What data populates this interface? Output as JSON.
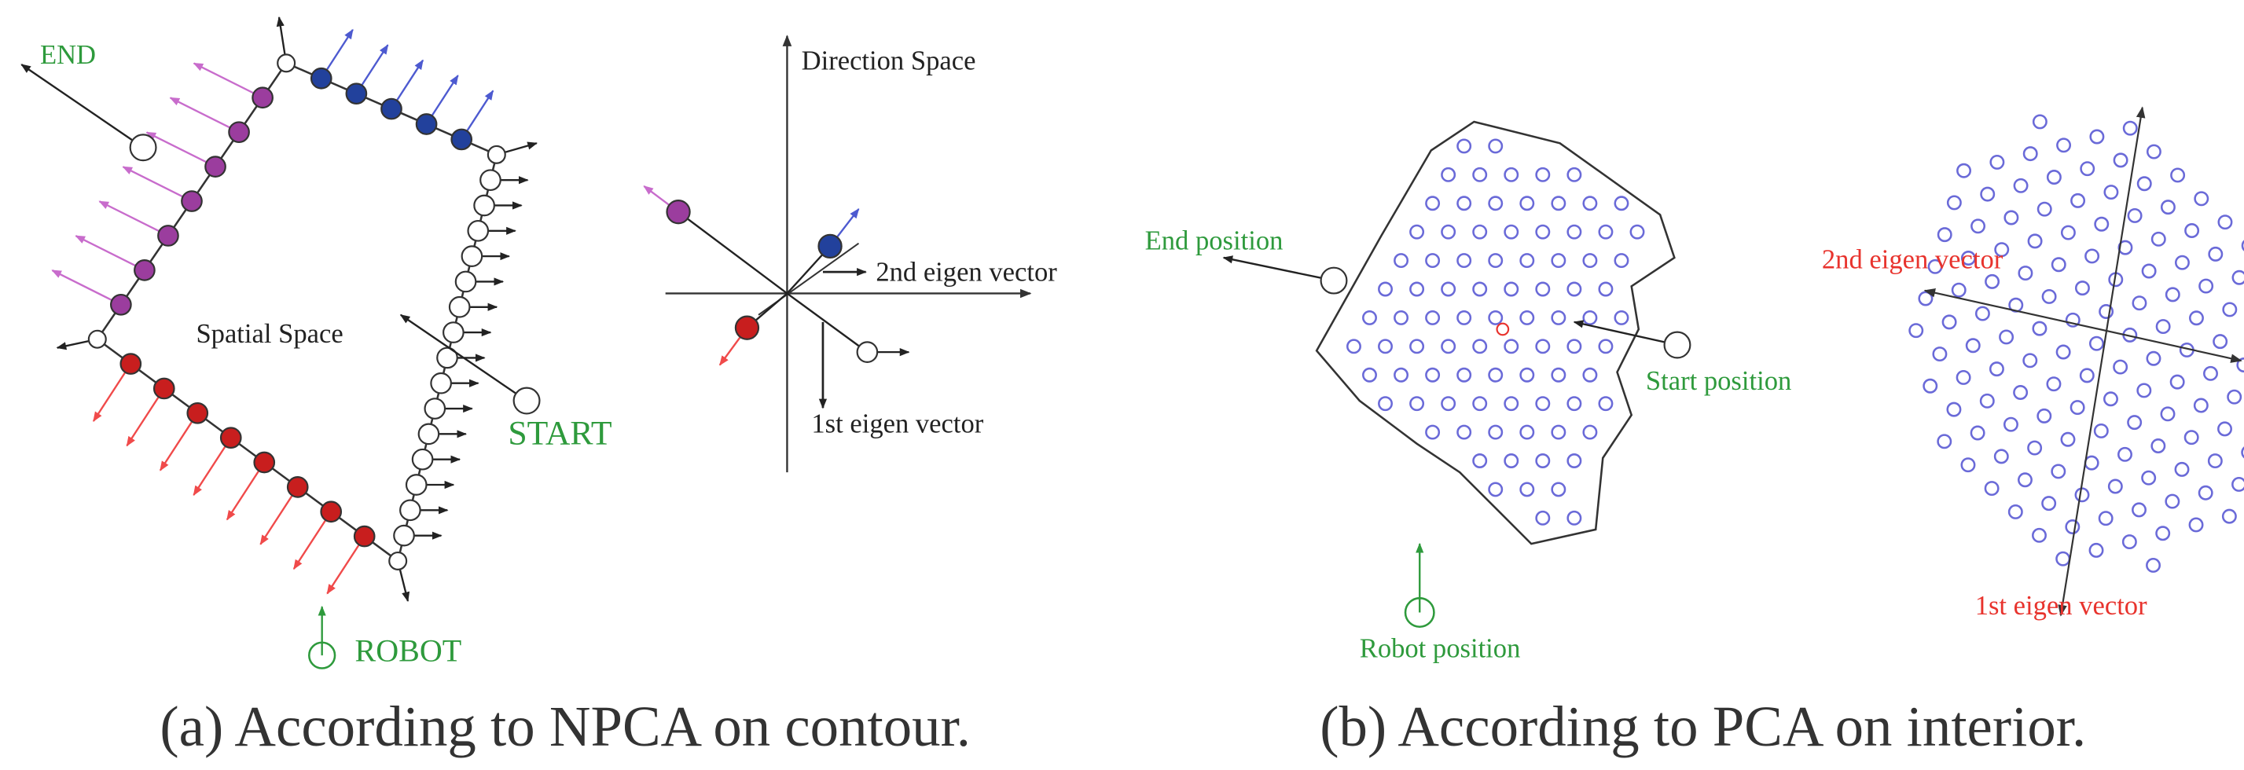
{
  "panel_a": {
    "spatial": {
      "end_label": "END",
      "spatial_label": "Spatial Space",
      "start_label": "START",
      "robot_label": "ROBOT"
    },
    "direction": {
      "title": "Direction Space",
      "eigen2_label": "2nd eigen vector",
      "eigen1_label": "1st eigen vector"
    },
    "caption": "(a) According to NPCA on contour."
  },
  "panel_b": {
    "interior": {
      "end_label": "End position",
      "start_label": "Start position",
      "robot_label": "Robot position"
    },
    "pca": {
      "eigen2_label": "2nd eigen vector",
      "eigen1_label": "1st eigen vector"
    },
    "caption": "(b) According to PCA on interior."
  }
}
